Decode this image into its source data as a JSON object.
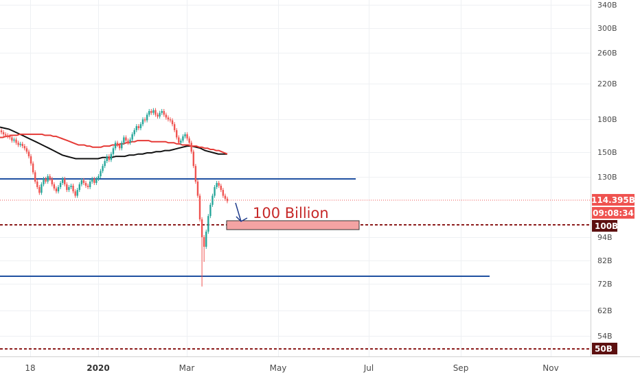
{
  "chart_data": {
    "type": "candlestick",
    "y_scale": "log",
    "y_ticks": [
      "340B",
      "300B",
      "260B",
      "220B",
      "180B",
      "150B",
      "130B",
      "94B",
      "82B",
      "72B",
      "62B",
      "54B"
    ],
    "x_ticks": [
      {
        "label": "18",
        "bold": false
      },
      {
        "label": "2020",
        "bold": true
      },
      {
        "label": "Mar",
        "bold": false
      },
      {
        "label": "May",
        "bold": false
      },
      {
        "label": "Jul",
        "bold": false
      },
      {
        "label": "Sep",
        "bold": false
      },
      {
        "label": "Nov",
        "bold": false
      }
    ],
    "price_badge": {
      "value": "114.395B",
      "countdown": "09:08:34",
      "color": "#ef5350"
    },
    "level_badges": [
      {
        "label": "100B",
        "value": 100,
        "color": "#5d1010"
      },
      {
        "label": "50B",
        "value": 50,
        "color": "#5d1010"
      }
    ],
    "annotation": {
      "text": "100 Billion",
      "color": "#c62828"
    },
    "horizontal_lines": [
      {
        "value": 127,
        "color": "#1e4fa0"
      },
      {
        "value": 76,
        "color": "#1e4fa0"
      }
    ],
    "support_zone": {
      "low": 97,
      "high": 102,
      "color": "#f4a3a3"
    },
    "colors": {
      "up": "#26a69a",
      "down": "#ef5350",
      "ma_fast": "#e53935",
      "ma_slow": "#111111"
    },
    "candles_close": [
      170,
      168,
      167,
      166,
      165,
      162,
      163,
      160,
      158,
      159,
      157,
      155,
      152,
      148,
      142,
      135,
      128,
      124,
      120,
      126,
      130,
      128,
      132,
      130,
      126,
      123,
      121,
      124,
      127,
      130,
      126,
      122,
      124,
      125,
      121,
      118,
      122,
      126,
      129,
      127,
      125,
      124,
      128,
      130,
      127,
      130,
      132,
      136,
      140,
      144,
      148,
      145,
      150,
      155,
      160,
      158,
      155,
      160,
      165,
      162,
      160,
      163,
      168,
      172,
      176,
      174,
      178,
      183,
      182,
      188,
      192,
      190,
      193,
      188,
      186,
      190,
      192,
      188,
      185,
      183,
      182,
      178,
      172,
      165,
      160,
      162,
      166,
      168,
      164,
      160,
      152,
      140,
      128,
      118,
      103,
      93,
      88,
      96,
      105,
      112,
      118,
      124,
      127,
      125,
      122,
      118,
      116,
      114.4
    ],
    "ma_fast": [
      165,
      165,
      166,
      166,
      167,
      167,
      167,
      168,
      168,
      168,
      168,
      168,
      168,
      168,
      168,
      168,
      167,
      167,
      167,
      166,
      166,
      165,
      164,
      163,
      162,
      161,
      160,
      159,
      158,
      158,
      158,
      157,
      157,
      156,
      156,
      156,
      156,
      157,
      157,
      157,
      158,
      158,
      158,
      159,
      159,
      160,
      160,
      161,
      161,
      162,
      162,
      162,
      162,
      162,
      161,
      161,
      161,
      161,
      161,
      161,
      160,
      160,
      160,
      159,
      159,
      158,
      158,
      158,
      157,
      157,
      157,
      156,
      156,
      155,
      155,
      154,
      154,
      153,
      153,
      152,
      151,
      150
    ],
    "ma_slow": [
      175,
      174,
      173,
      171,
      169,
      167,
      165,
      163,
      161,
      159,
      157,
      155,
      153,
      151,
      149,
      148,
      147,
      146,
      146,
      146,
      146,
      146,
      146,
      147,
      147,
      147,
      148,
      148,
      148,
      149,
      149,
      150,
      150,
      151,
      151,
      152,
      152,
      153,
      153,
      154,
      155,
      156,
      157,
      157,
      156,
      155,
      153,
      152,
      151,
      150,
      150,
      150
    ]
  }
}
